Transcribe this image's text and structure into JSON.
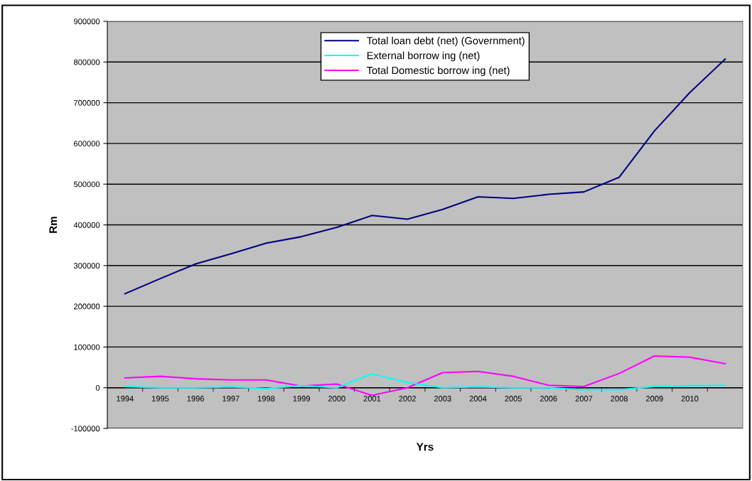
{
  "chart_data": {
    "type": "line",
    "xlabel": "Yrs",
    "ylabel": "Rm",
    "categories": [
      "1994",
      "1995",
      "1996",
      "1997",
      "1998",
      "1999",
      "2000",
      "2001",
      "2002",
      "2003",
      "2004",
      "2005",
      "2006",
      "2007",
      "2008",
      "2009",
      "2010",
      null
    ],
    "series": [
      {
        "name": "Total loan debt (net) (Government)",
        "color": "#000080",
        "values": [
          231000,
          268000,
          304000,
          329000,
          355000,
          371000,
          394000,
          423000,
          414000,
          438000,
          469000,
          465000,
          475000,
          481000,
          517000,
          631000,
          725000,
          807000
        ]
      },
      {
        "name": "External borrow ing (net)",
        "color": "#00ffff",
        "values": [
          3000,
          0,
          0,
          2000,
          -2000,
          5000,
          0,
          34000,
          13000,
          0,
          2000,
          0,
          0,
          -5000,
          -5000,
          3000,
          5000,
          6000
        ]
      },
      {
        "name": "Total Domestic borrow ing (net)",
        "color": "#ff00ff",
        "values": [
          24000,
          28000,
          22000,
          19000,
          19000,
          4000,
          9000,
          -19000,
          0,
          37000,
          40000,
          28000,
          6000,
          3000,
          35000,
          78000,
          75000,
          59000
        ]
      }
    ],
    "ylim": [
      -100000,
      900000
    ],
    "yticks": [
      -100000,
      0,
      100000,
      200000,
      300000,
      400000,
      500000,
      600000,
      700000,
      800000,
      900000
    ],
    "grid": "y",
    "legend": "top",
    "marker": "none",
    "line_style": "solid"
  }
}
